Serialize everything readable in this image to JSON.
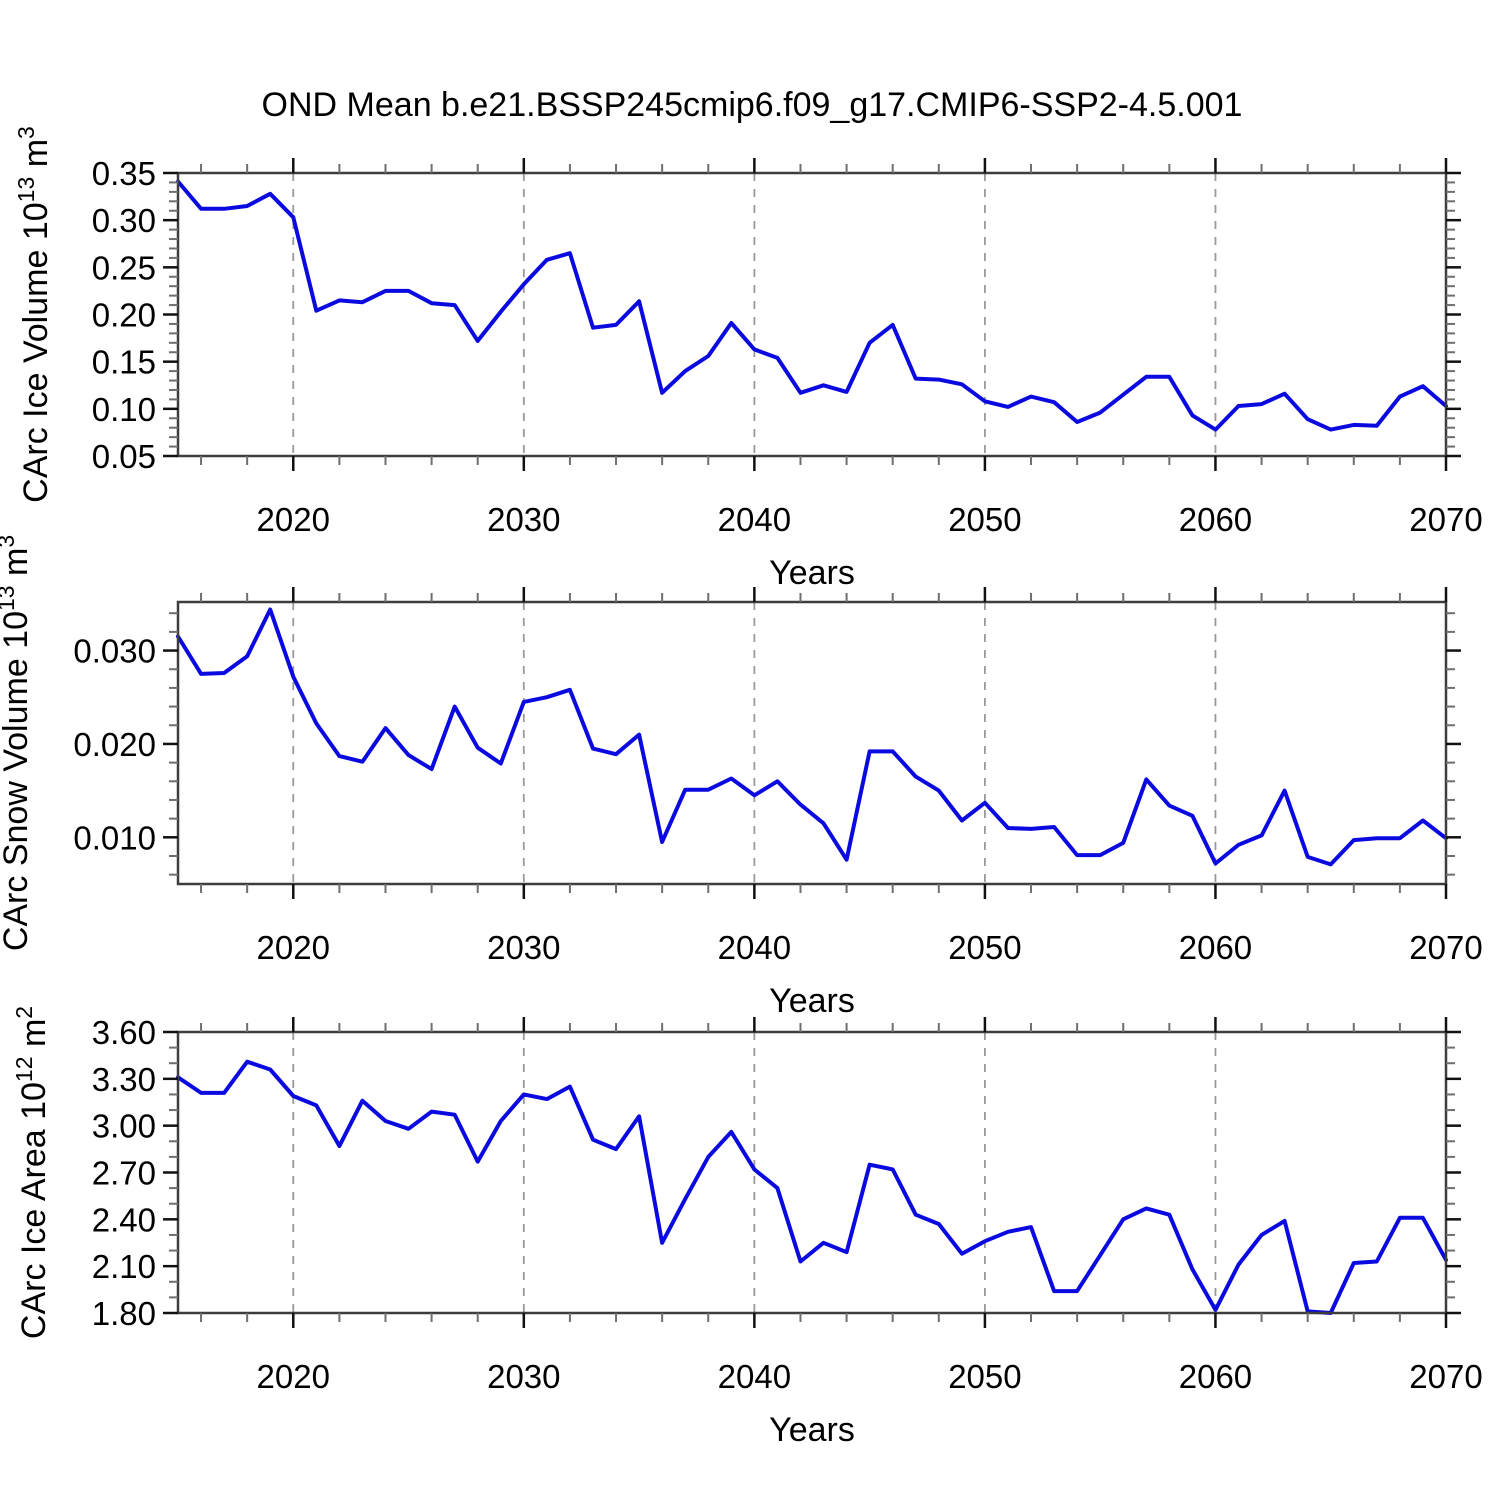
{
  "title": "OND Mean b.e21.BSSP245cmip6.f09_g17.CMIP6-SSP2-4.5.001",
  "colors": {
    "line": "#0a0ae0",
    "grid": "#999999",
    "spine": "#3d3d3d",
    "tick_major": "#111111",
    "tick_minor": "#6e6e6e",
    "text": "#000000"
  },
  "chart_data": [
    {
      "id": "ice-volume",
      "type": "line",
      "ylabel": "CArc Ice Volume 10^{13} m^{3}",
      "xlabel": "Years",
      "x": [
        2015,
        2016,
        2017,
        2018,
        2019,
        2020,
        2021,
        2022,
        2023,
        2024,
        2025,
        2026,
        2027,
        2028,
        2029,
        2030,
        2031,
        2032,
        2033,
        2034,
        2035,
        2036,
        2037,
        2038,
        2039,
        2040,
        2041,
        2042,
        2043,
        2044,
        2045,
        2046,
        2047,
        2048,
        2049,
        2050,
        2051,
        2052,
        2053,
        2054,
        2055,
        2056,
        2057,
        2058,
        2059,
        2060,
        2061,
        2062,
        2063,
        2064,
        2065,
        2066,
        2067,
        2068,
        2069,
        2070
      ],
      "series": [
        {
          "name": "CArc Ice Volume",
          "values": [
            0.341,
            0.312,
            0.312,
            0.315,
            0.328,
            0.303,
            0.204,
            0.215,
            0.213,
            0.225,
            0.225,
            0.212,
            0.21,
            0.172,
            0.203,
            0.232,
            0.258,
            0.265,
            0.186,
            0.189,
            0.214,
            0.117,
            0.14,
            0.156,
            0.191,
            0.163,
            0.154,
            0.117,
            0.125,
            0.118,
            0.17,
            0.189,
            0.132,
            0.131,
            0.126,
            0.108,
            0.102,
            0.113,
            0.107,
            0.086,
            0.096,
            0.115,
            0.134,
            0.134,
            0.093,
            0.078,
            0.103,
            0.105,
            0.116,
            0.089,
            0.078,
            0.083,
            0.082,
            0.113,
            0.124,
            0.103
          ]
        }
      ],
      "xlim": [
        2015,
        2070
      ],
      "ylim": [
        0.05,
        0.35
      ],
      "yticks": [
        0.05,
        0.1,
        0.15,
        0.2,
        0.25,
        0.3,
        0.35
      ],
      "ytick_labels": [
        "0.05",
        "0.10",
        "0.15",
        "0.20",
        "0.25",
        "0.30",
        "0.35"
      ],
      "ytick_minor_step": 0.01,
      "xticks": [
        2020,
        2030,
        2040,
        2050,
        2060,
        2070
      ],
      "xtick_labels": [
        "2020",
        "2030",
        "2040",
        "2050",
        "2060",
        "2070"
      ],
      "xtick_minor_step": 2,
      "gridlines_x": [
        2020,
        2030,
        2040,
        2050,
        2060
      ],
      "grid": "vertical-dashed",
      "legend": "none"
    },
    {
      "id": "snow-volume",
      "type": "line",
      "ylabel": "CArc Snow Volume 10^{13} m^{3}",
      "xlabel": "Years",
      "x": [
        2015,
        2016,
        2017,
        2018,
        2019,
        2020,
        2021,
        2022,
        2023,
        2024,
        2025,
        2026,
        2027,
        2028,
        2029,
        2030,
        2031,
        2032,
        2033,
        2034,
        2035,
        2036,
        2037,
        2038,
        2039,
        2040,
        2041,
        2042,
        2043,
        2044,
        2045,
        2046,
        2047,
        2048,
        2049,
        2050,
        2051,
        2052,
        2053,
        2054,
        2055,
        2056,
        2057,
        2058,
        2059,
        2060,
        2061,
        2062,
        2063,
        2064,
        2065,
        2066,
        2067,
        2068,
        2069,
        2070
      ],
      "series": [
        {
          "name": "CArc Snow Volume",
          "values": [
            0.0315,
            0.0275,
            0.0276,
            0.0294,
            0.0344,
            0.0272,
            0.0222,
            0.0187,
            0.0181,
            0.0217,
            0.0188,
            0.0173,
            0.024,
            0.0196,
            0.0179,
            0.0245,
            0.025,
            0.0258,
            0.0195,
            0.0189,
            0.021,
            0.0095,
            0.0151,
            0.0151,
            0.0163,
            0.0145,
            0.016,
            0.0135,
            0.0115,
            0.0076,
            0.0192,
            0.0192,
            0.0165,
            0.015,
            0.0118,
            0.0137,
            0.011,
            0.0109,
            0.0111,
            0.0081,
            0.0081,
            0.0094,
            0.0162,
            0.0134,
            0.0123,
            0.0072,
            0.0092,
            0.0102,
            0.015,
            0.0079,
            0.0071,
            0.0097,
            0.0099,
            0.0099,
            0.0118,
            0.0099
          ]
        }
      ],
      "xlim": [
        2015,
        2070
      ],
      "ylim": [
        0.005,
        0.0352
      ],
      "yticks": [
        0.01,
        0.02,
        0.03
      ],
      "ytick_labels": [
        "0.010",
        "0.020",
        "0.030"
      ],
      "ytick_minor_step": 0.002,
      "xticks": [
        2020,
        2030,
        2040,
        2050,
        2060,
        2070
      ],
      "xtick_labels": [
        "2020",
        "2030",
        "2040",
        "2050",
        "2060",
        "2070"
      ],
      "xtick_minor_step": 2,
      "gridlines_x": [
        2020,
        2030,
        2040,
        2050,
        2060
      ],
      "grid": "vertical-dashed",
      "legend": "none"
    },
    {
      "id": "ice-area",
      "type": "line",
      "ylabel": "CArc Ice Area 10^{12} m^{2}",
      "xlabel": "Years",
      "x": [
        2015,
        2016,
        2017,
        2018,
        2019,
        2020,
        2021,
        2022,
        2023,
        2024,
        2025,
        2026,
        2027,
        2028,
        2029,
        2030,
        2031,
        2032,
        2033,
        2034,
        2035,
        2036,
        2037,
        2038,
        2039,
        2040,
        2041,
        2042,
        2043,
        2044,
        2045,
        2046,
        2047,
        2048,
        2049,
        2050,
        2051,
        2052,
        2053,
        2054,
        2055,
        2056,
        2057,
        2058,
        2059,
        2060,
        2061,
        2062,
        2063,
        2064,
        2065,
        2066,
        2067,
        2068,
        2069,
        2070
      ],
      "series": [
        {
          "name": "CArc Ice Area",
          "values": [
            3.31,
            3.21,
            3.21,
            3.41,
            3.36,
            3.19,
            3.13,
            2.87,
            3.16,
            3.03,
            2.98,
            3.09,
            3.07,
            2.77,
            3.03,
            3.2,
            3.17,
            3.25,
            2.91,
            2.85,
            3.06,
            2.25,
            2.53,
            2.8,
            2.96,
            2.72,
            2.6,
            2.13,
            2.25,
            2.19,
            2.75,
            2.72,
            2.43,
            2.37,
            2.18,
            2.26,
            2.32,
            2.35,
            1.94,
            1.94,
            2.17,
            2.4,
            2.47,
            2.43,
            2.08,
            1.82,
            2.11,
            2.3,
            2.39,
            1.81,
            1.8,
            2.12,
            2.13,
            2.41,
            2.41,
            2.14
          ]
        }
      ],
      "xlim": [
        2015,
        2070
      ],
      "ylim": [
        1.8,
        3.6
      ],
      "yticks": [
        1.8,
        2.1,
        2.4,
        2.7,
        3.0,
        3.3,
        3.6
      ],
      "ytick_labels": [
        "1.80",
        "2.10",
        "2.40",
        "2.70",
        "3.00",
        "3.30",
        "3.60"
      ],
      "ytick_minor_step": 0.1,
      "xticks": [
        2020,
        2030,
        2040,
        2050,
        2060,
        2070
      ],
      "xtick_labels": [
        "2020",
        "2030",
        "2040",
        "2050",
        "2060",
        "2070"
      ],
      "xtick_minor_step": 2,
      "gridlines_x": [
        2020,
        2030,
        2040,
        2050,
        2060
      ],
      "grid": "vertical-dashed",
      "legend": "none"
    }
  ]
}
